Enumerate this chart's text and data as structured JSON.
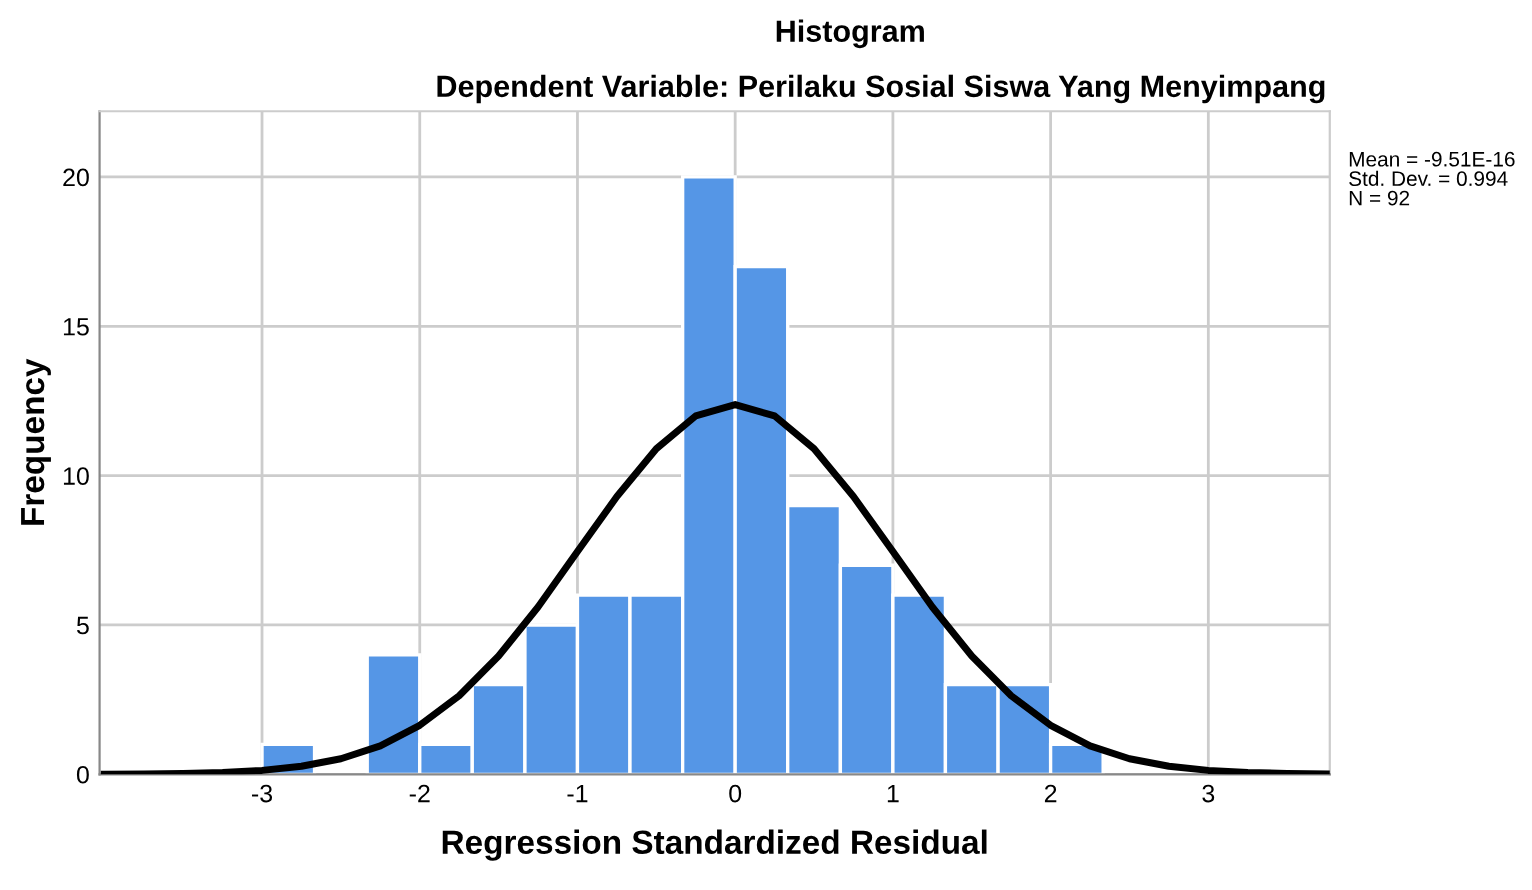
{
  "chart_data": {
    "type": "histogram",
    "title": "Histogram",
    "subtitle": "Dependent Variable: Perilaku Sosial Siswa Yang Menyimpang",
    "xlabel": "Regression Standardized Residual",
    "ylabel": "Frequency",
    "bins": [
      -3,
      -2.667,
      -2.333,
      -2,
      -1.667,
      -1.333,
      -1,
      -0.667,
      -0.333,
      0,
      0.333,
      0.667,
      1,
      1.333,
      1.667,
      2,
      2.333
    ],
    "values": [
      1,
      0,
      4,
      1,
      3,
      5,
      6,
      6,
      20,
      17,
      9,
      7,
      6,
      3,
      3,
      1
    ],
    "color": "#5596e6",
    "series": [
      {
        "type": "line",
        "color": "#000000",
        "x": [
          -4,
          -3.75,
          -3.5,
          -3.25,
          -3,
          -2.75,
          -2.5,
          -2.25,
          -2,
          -1.75,
          -1.5,
          -1.25,
          -1,
          -0.75,
          -0.5,
          -0.25,
          0,
          0.25,
          0.5,
          0.75,
          1,
          1.25,
          1.5,
          1.75,
          2,
          2.25,
          2.5,
          2.75,
          3,
          3.25,
          3.5,
          3.75
        ],
        "values": [
          0.0,
          0.01,
          0.03,
          0.06,
          0.13,
          0.27,
          0.52,
          0.95,
          1.64,
          2.63,
          3.96,
          5.6,
          7.46,
          9.3,
          10.9,
          12.0,
          12.38,
          12.0,
          10.9,
          9.3,
          7.46,
          5.6,
          3.96,
          2.63,
          1.64,
          0.95,
          0.52,
          0.27,
          0.13,
          0.06,
          0.03,
          0.01
        ]
      }
    ],
    "annotations": [
      "Mean = -9.51E-16\nStd. Dev. = 0.994\nN = 92"
    ],
    "xlim": [
      -4.03,
      3.77
    ],
    "xticks": [
      -3,
      -2,
      -1,
      0,
      1,
      2,
      3
    ],
    "ylim": [
      0,
      22.2
    ],
    "yticks": [
      0,
      5,
      10,
      15,
      20
    ],
    "grid": true,
    "legend": false
  }
}
